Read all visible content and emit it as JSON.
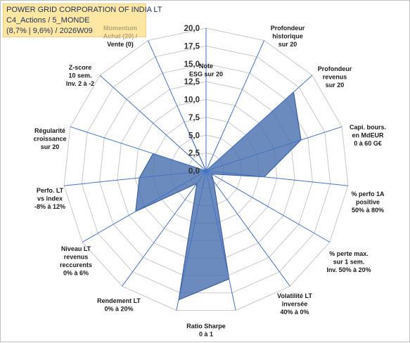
{
  "title": {
    "line1": "POWER GRID CORPORATION OF INDIA LT",
    "line2": "C4_Actions / 5_MONDE",
    "line3": "(8,7% | 9,6%) / 2026W09"
  },
  "chart_data": {
    "type": "radar",
    "rmax": 20,
    "tick_step": 2.5,
    "tick_labels": [
      "0,0",
      "2,5",
      "5,0",
      "7,5",
      "10,0",
      "12,5",
      "15,0",
      "17,5",
      "20,0"
    ],
    "fill_color": "#4a72b0",
    "axes": [
      {
        "label": [
          "Note",
          "ESG sur 20"
        ],
        "value": 0
      },
      {
        "label": [
          "Profondeur",
          "historique",
          "sur 20"
        ],
        "value": 0
      },
      {
        "label": [
          "Profondeur",
          "revenus",
          "sur 20"
        ],
        "value": 16.5
      },
      {
        "label": [
          "Capi. bours.",
          "en MdEUR",
          "0 à 60 G€"
        ],
        "value": 14
      },
      {
        "label": [
          "% perfo 1A",
          "positive",
          "50% à 80%"
        ],
        "value": 8.2
      },
      {
        "label": [
          "% perte max.",
          "sur 1 sem.",
          "Inv. 50% à 20%"
        ],
        "value": 0.9
      },
      {
        "label": [
          "Volatilité LT",
          "inversée",
          "40% à 0%"
        ],
        "value": 1.8
      },
      {
        "label": [
          "Ratio Sharpe",
          "0 à 1"
        ],
        "value": 15.5
      },
      {
        "label": [
          "Rendement LT",
          "0% à 20%"
        ],
        "value": 18.5
      },
      {
        "label": [
          "Niveau LT",
          "revenus",
          "reccurents",
          "0% à 6%"
        ],
        "value": 2.2
      },
      {
        "label": [
          "Perfo. LT",
          "vs index",
          "-8% à 12%"
        ],
        "value": 11.4
      },
      {
        "label": [
          "Régularité",
          "croissance",
          "sur 20"
        ],
        "value": 9.4
      },
      {
        "label": [
          "Z-score",
          "10 sem.",
          "Inv. 2 à -2"
        ],
        "value": 7.8
      },
      {
        "label": [
          "Momentum",
          "Achat (20) /",
          "Vente (0)"
        ],
        "value": 0
      },
      {
        "label": [],
        "value": 4.9
      }
    ]
  }
}
